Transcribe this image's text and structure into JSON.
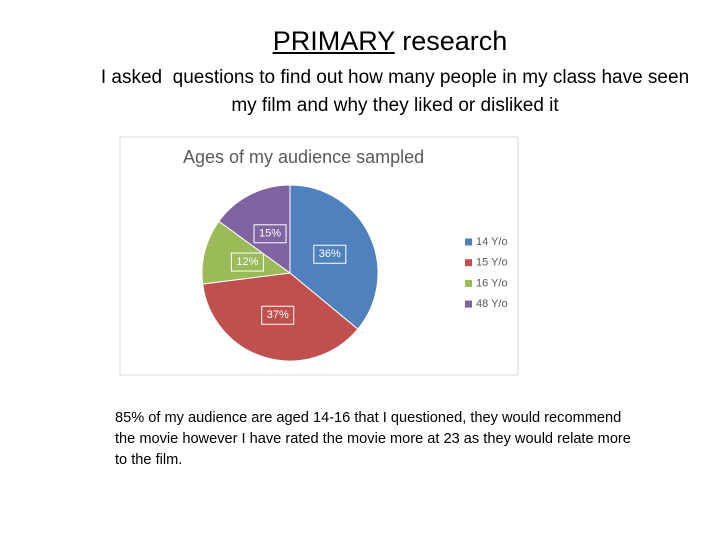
{
  "slide": {
    "title_underlined": "PRIMARY",
    "title_rest": " research",
    "subtitle": "I asked  questions to find out how many people in my class have seen my film and why they liked or disliked it",
    "paragraph": "85% of my audience are aged 14-16 that I questioned, they would recommend the movie however I have rated the movie more at 23 as they would relate more to the film."
  },
  "chart_data": {
    "type": "pie",
    "title": "Ages of my audience sampled",
    "categories": [
      "14 Y/o",
      "15 Y/o",
      "16 Y/o",
      "48 Y/o"
    ],
    "values": [
      36,
      37,
      12,
      15
    ],
    "value_labels": [
      "36%",
      "37%",
      "12%",
      "15%"
    ],
    "colors": [
      "#4f81bd",
      "#c0504d",
      "#9bbb59",
      "#8064a2"
    ],
    "legend": "right"
  }
}
